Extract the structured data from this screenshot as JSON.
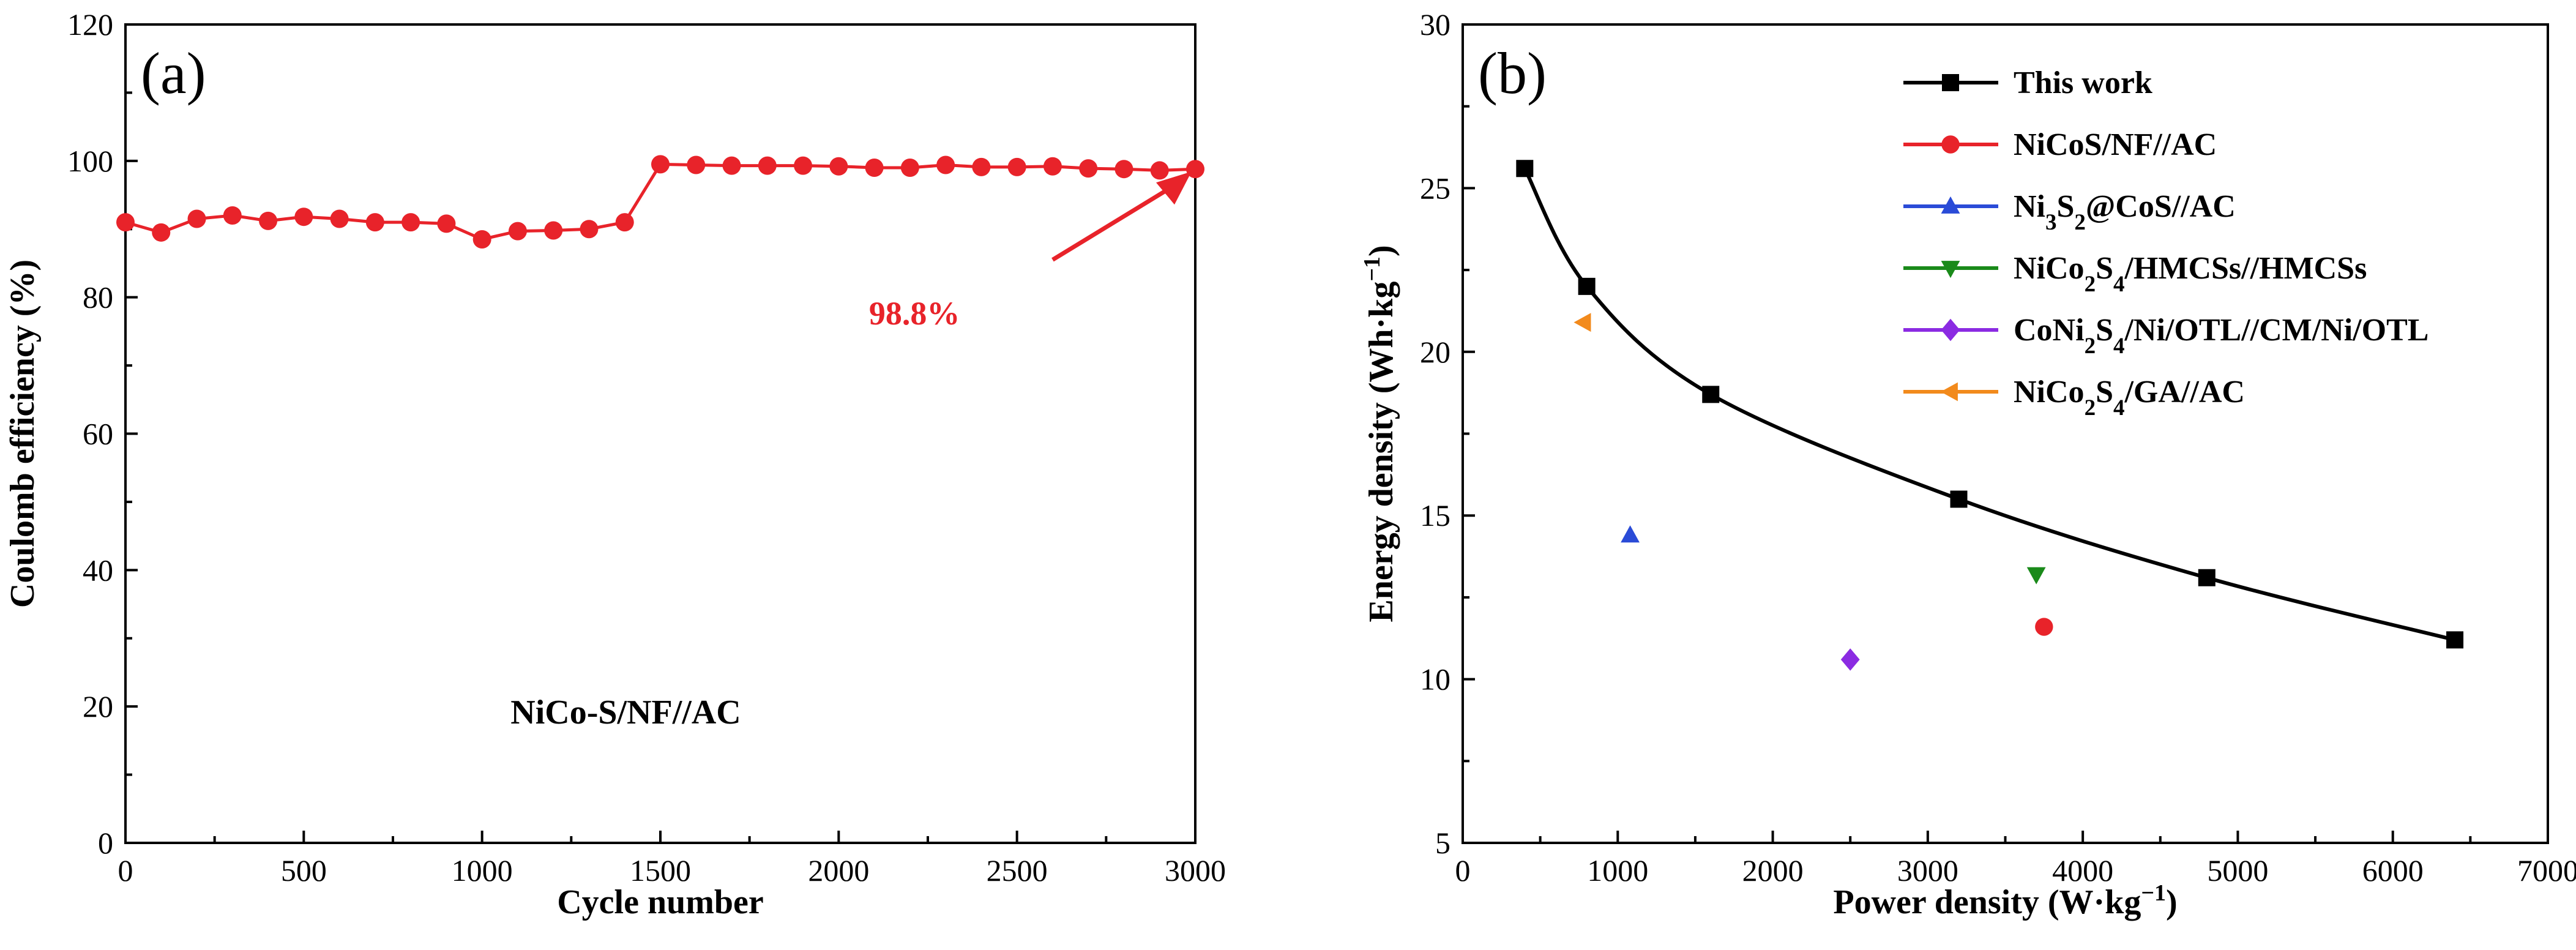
{
  "chart_data": [
    {
      "type": "line",
      "panel_label": "(a)",
      "xlabel": "Cycle number",
      "ylabel": "Coulomb efficiency (%)",
      "xlim": [
        0,
        3000
      ],
      "ylim": [
        0,
        120
      ],
      "xticks": [
        0,
        500,
        1000,
        1500,
        2000,
        2500,
        3000
      ],
      "yticks": [
        0,
        20,
        40,
        60,
        80,
        100,
        120
      ],
      "x": [
        0,
        100,
        200,
        300,
        400,
        500,
        600,
        700,
        800,
        900,
        1000,
        1100,
        1200,
        1300,
        1400,
        1500,
        1600,
        1700,
        1800,
        1900,
        2000,
        2100,
        2200,
        2300,
        2400,
        2500,
        2600,
        2700,
        2800,
        2900,
        3000
      ],
      "series": [
        {
          "name": "NiCo-S/NF//AC",
          "color": "#e8232a",
          "values": [
            91.0,
            89.5,
            91.5,
            92.0,
            91.2,
            91.8,
            91.5,
            91.0,
            91.0,
            90.8,
            88.5,
            89.7,
            89.8,
            90.0,
            91.0,
            99.5,
            99.4,
            99.3,
            99.3,
            99.3,
            99.2,
            99.0,
            99.0,
            99.4,
            99.1,
            99.1,
            99.2,
            98.9,
            98.8,
            98.6,
            98.8
          ]
        }
      ],
      "sample_label": "NiCo-S/NF//AC",
      "annotation": {
        "text": "98.8%",
        "color": "#e8232a",
        "points_to": [
          3000,
          98.8
        ]
      }
    },
    {
      "type": "scatter",
      "panel_label": "(b)",
      "xlabel": "Power density (W·kg",
      "xlabel_sup": "−1",
      "xlabel_end": ")",
      "ylabel": "Energy density (Wh·kg",
      "ylabel_sup": "−1",
      "ylabel_end": ")",
      "xlim": [
        0,
        7000
      ],
      "ylim": [
        5,
        30
      ],
      "xticks": [
        0,
        1000,
        2000,
        3000,
        4000,
        5000,
        6000,
        7000
      ],
      "yticks": [
        5,
        10,
        15,
        20,
        25,
        30
      ],
      "legend_position": "top-right",
      "series": [
        {
          "name": "This work",
          "legend_parts": [
            [
              "This work",
              ""
            ]
          ],
          "color": "#000000",
          "marker": "square",
          "line": true,
          "x": [
            400,
            800,
            1600,
            3200,
            4800,
            6400
          ],
          "y": [
            25.6,
            22.0,
            18.7,
            15.5,
            13.1,
            11.2
          ]
        },
        {
          "name": "NiCoS/NF//AC",
          "legend_parts": [
            [
              "NiCoS/NF//AC",
              ""
            ]
          ],
          "color": "#e8232a",
          "marker": "circle",
          "line": false,
          "x": [
            3750
          ],
          "y": [
            11.6
          ]
        },
        {
          "name": "Ni3S2@CoS//AC",
          "legend_parts": [
            [
              "Ni",
              ""
            ],
            [
              "3",
              "sub"
            ],
            [
              "S",
              ""
            ],
            [
              "2",
              "sub"
            ],
            [
              "@CoS//AC",
              ""
            ]
          ],
          "color": "#2a4bd7",
          "marker": "triangle-up",
          "line": false,
          "x": [
            1080
          ],
          "y": [
            14.4
          ]
        },
        {
          "name": "NiCo2S4/HMCSs//HMCSs",
          "legend_parts": [
            [
              "NiCo",
              ""
            ],
            [
              "2",
              "sub"
            ],
            [
              "S",
              ""
            ],
            [
              "4",
              "sub"
            ],
            [
              "/HMCSs//HMCSs",
              ""
            ]
          ],
          "color": "#1a8a1a",
          "marker": "triangle-down",
          "line": false,
          "x": [
            3700
          ],
          "y": [
            13.2
          ]
        },
        {
          "name": "CoNi2S4/Ni/OTL//CM/Ni/OTL",
          "legend_parts": [
            [
              "CoNi",
              ""
            ],
            [
              "2",
              "sub"
            ],
            [
              "S",
              ""
            ],
            [
              "4",
              "sub"
            ],
            [
              "/Ni/OTL//CM/Ni/OTL",
              ""
            ]
          ],
          "color": "#8b2be2",
          "marker": "diamond",
          "line": false,
          "x": [
            2500
          ],
          "y": [
            10.6
          ]
        },
        {
          "name": "NiCo2S4/GA//AC",
          "legend_parts": [
            [
              "NiCo",
              ""
            ],
            [
              "2",
              "sub"
            ],
            [
              "S",
              ""
            ],
            [
              "4",
              "sub"
            ],
            [
              "/GA//AC",
              ""
            ]
          ],
          "color": "#f28a1c",
          "marker": "triangle-left",
          "line": false,
          "x": [
            780
          ],
          "y": [
            20.9
          ]
        }
      ]
    }
  ]
}
